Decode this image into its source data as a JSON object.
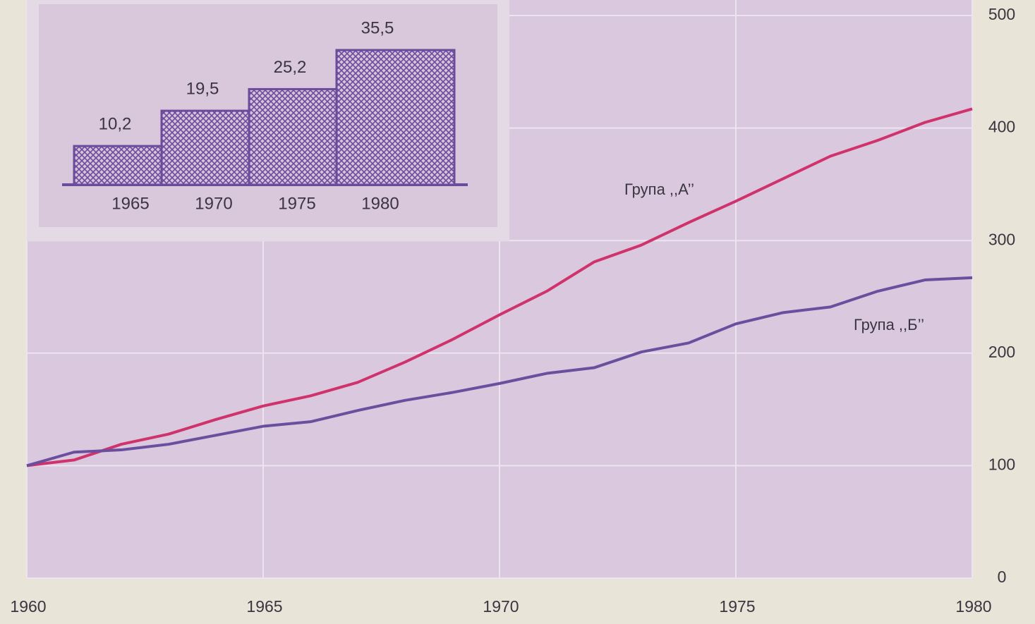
{
  "chart_data": [
    {
      "type": "line",
      "x": [
        1960,
        1961,
        1962,
        1963,
        1964,
        1965,
        1966,
        1967,
        1968,
        1969,
        1970,
        1971,
        1972,
        1973,
        1974,
        1975,
        1976,
        1977,
        1978,
        1979,
        1980
      ],
      "series": [
        {
          "name": "Група ,,А’’",
          "color": "#d0326c",
          "values": [
            100,
            105,
            119,
            128,
            141,
            153,
            162,
            174,
            192,
            212,
            234,
            255,
            281,
            296,
            316,
            335,
            355,
            375,
            389,
            405,
            417
          ]
        },
        {
          "name": "Група ,,Б’’",
          "color": "#6a4f9e",
          "values": [
            100,
            112,
            114,
            119,
            127,
            135,
            139,
            149,
            158,
            165,
            173,
            182,
            187,
            201,
            209,
            226,
            236,
            241,
            255,
            265,
            267
          ]
        }
      ],
      "xlim": [
        1960,
        1980
      ],
      "xticks": [
        1960,
        1965,
        1970,
        1975,
        1980
      ],
      "ylim": [
        0,
        500
      ],
      "yticks": [
        0,
        100,
        200,
        300,
        400,
        500
      ],
      "grid": true
    },
    {
      "type": "bar",
      "categories": [
        "1965",
        "1970",
        "1975",
        "1980"
      ],
      "values": [
        10.2,
        19.5,
        25.2,
        35.5
      ],
      "value_labels": [
        "10,2",
        "19,5",
        "25,2",
        "35,5"
      ],
      "color": "#6b4b9c"
    }
  ]
}
